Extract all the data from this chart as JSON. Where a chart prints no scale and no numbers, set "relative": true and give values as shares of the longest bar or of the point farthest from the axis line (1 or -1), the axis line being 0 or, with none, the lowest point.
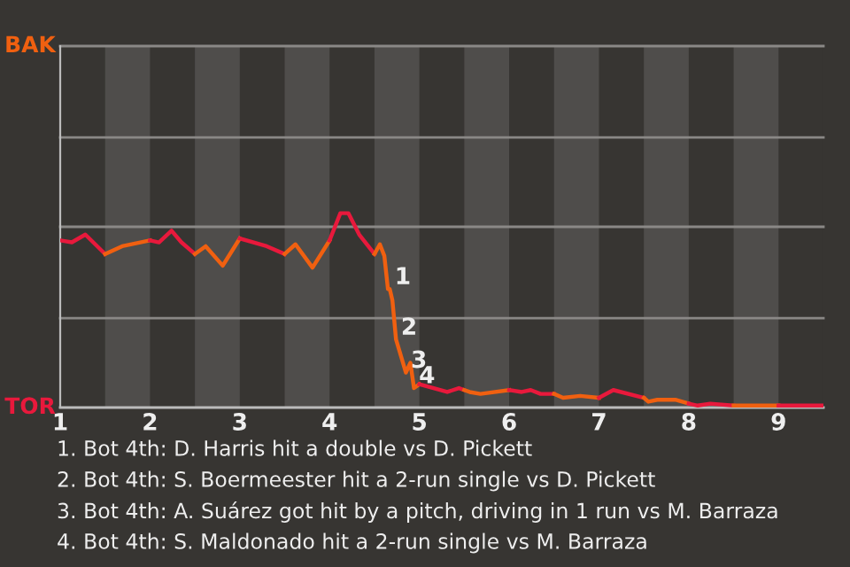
{
  "chart_data": {
    "type": "line",
    "relative": true,
    "xlim": [
      1,
      9.5
    ],
    "xticks": [
      1,
      2,
      3,
      4,
      5,
      6,
      7,
      8,
      9
    ],
    "marker": "none",
    "line_style": "solid",
    "series": [
      {
        "color": "#e8193c",
        "x": [
          1.0,
          1.13,
          1.28,
          1.5
        ],
        "values": [
          0.86,
          0.85,
          0.89,
          0.79
        ]
      },
      {
        "color": "#f06010",
        "x": [
          1.5,
          1.69,
          2.0
        ],
        "values": [
          0.79,
          0.83,
          0.86
        ]
      },
      {
        "color": "#e8193c",
        "x": [
          2.0,
          2.1,
          2.24,
          2.35,
          2.5
        ],
        "values": [
          0.86,
          0.85,
          0.91,
          0.85,
          0.79
        ]
      },
      {
        "color": "#f06010",
        "x": [
          2.5,
          2.62,
          2.81,
          3.0
        ],
        "values": [
          0.79,
          0.83,
          0.73,
          0.87
        ]
      },
      {
        "color": "#e8193c",
        "x": [
          3.0,
          3.3,
          3.5
        ],
        "values": [
          0.87,
          0.83,
          0.79
        ]
      },
      {
        "color": "#f06010",
        "x": [
          3.5,
          3.62,
          3.81,
          4.0
        ],
        "values": [
          0.79,
          0.84,
          0.72,
          0.86
        ]
      },
      {
        "color": "#e8193c",
        "x": [
          4.0,
          4.12,
          4.21,
          4.33,
          4.5
        ],
        "values": [
          0.86,
          1.0,
          1.0,
          0.89,
          0.79
        ]
      },
      {
        "color": "#f06010",
        "x": [
          4.5,
          4.56,
          4.61,
          4.65,
          4.67,
          4.7,
          4.74,
          4.85,
          4.9,
          4.94,
          5.0
        ],
        "values": [
          0.79,
          0.84,
          0.78,
          0.61,
          0.61,
          0.55,
          0.35,
          0.18,
          0.23,
          0.1,
          0.12
        ]
      },
      {
        "color": "#e8193c",
        "x": [
          5.0,
          5.31,
          5.44,
          5.5
        ],
        "values": [
          0.12,
          0.08,
          0.1,
          0.09
        ]
      },
      {
        "color": "#f06010",
        "x": [
          5.5,
          5.56,
          5.68,
          6.0
        ],
        "values": [
          0.09,
          0.08,
          0.07,
          0.09
        ]
      },
      {
        "color": "#e8193c",
        "x": [
          6.0,
          6.14,
          6.24,
          6.35,
          6.5
        ],
        "values": [
          0.09,
          0.08,
          0.09,
          0.07,
          0.07
        ]
      },
      {
        "color": "#f06010",
        "x": [
          6.5,
          6.6,
          6.79,
          7.0
        ],
        "values": [
          0.07,
          0.05,
          0.06,
          0.05
        ]
      },
      {
        "color": "#e8193c",
        "x": [
          7.0,
          7.16,
          7.5
        ],
        "values": [
          0.05,
          0.09,
          0.05
        ]
      },
      {
        "color": "#f06010",
        "x": [
          7.5,
          7.55,
          7.65,
          7.85,
          8.0
        ],
        "values": [
          0.05,
          0.03,
          0.04,
          0.04,
          0.02
        ]
      },
      {
        "color": "#e8193c",
        "x": [
          8.0,
          8.1,
          8.24,
          8.5
        ],
        "values": [
          0.02,
          0.01,
          0.02,
          0.01
        ]
      },
      {
        "color": "#f06010",
        "x": [
          8.5,
          9.0
        ],
        "values": [
          0.01,
          0.01
        ]
      },
      {
        "color": "#e8193c",
        "x": [
          9.0,
          9.5
        ],
        "values": [
          0.01,
          0.01
        ]
      }
    ],
    "ref_lines": [
      {
        "axis": "y",
        "value": 0,
        "label": "TOR",
        "color": "#bbbbbb"
      },
      {
        "axis": "y",
        "value": 0.46,
        "color": "#8a8886"
      },
      {
        "axis": "y",
        "value": 0.93,
        "color": "#8a8886"
      },
      {
        "axis": "y",
        "value": 1.39,
        "color": "#8a8886"
      },
      {
        "axis": "y",
        "value": 1.86,
        "label": "BAK",
        "color": "#8a8886"
      }
    ],
    "bands": [
      {
        "axis": "x",
        "from": 1.5,
        "to": 2,
        "color": "#4f4d4b"
      },
      {
        "axis": "x",
        "from": 2.5,
        "to": 3,
        "color": "#4f4d4b"
      },
      {
        "axis": "x",
        "from": 3.5,
        "to": 4,
        "color": "#4f4d4b"
      },
      {
        "axis": "x",
        "from": 4.5,
        "to": 5,
        "color": "#4f4d4b"
      },
      {
        "axis": "x",
        "from": 5.5,
        "to": 6,
        "color": "#4f4d4b"
      },
      {
        "axis": "x",
        "from": 6.5,
        "to": 7,
        "color": "#4f4d4b"
      },
      {
        "axis": "x",
        "from": 7.5,
        "to": 8,
        "color": "#4f4d4b"
      },
      {
        "axis": "x",
        "from": 8.5,
        "to": 9,
        "color": "#4f4d4b"
      }
    ],
    "annotations": [
      {
        "text": "1",
        "x": 4.67,
        "y": 0.61
      },
      {
        "text": "2",
        "x": 4.74,
        "y": 0.35
      },
      {
        "text": "3",
        "x": 4.85,
        "y": 0.18
      },
      {
        "text": "4",
        "x": 4.94,
        "y": 0.1
      },
      "1. Bot 4th: D. Harris hit a double vs D. Pickett",
      "2. Bot 4th: S. Boermeester hit a 2-run single vs D. Pickett",
      "3. Bot 4th: A. Suárez got hit by a pitch, driving in 1 run vs M. Barraza",
      "4. Bot 4th: S. Maldonado hit a 2-run single vs M. Barraza"
    ]
  }
}
